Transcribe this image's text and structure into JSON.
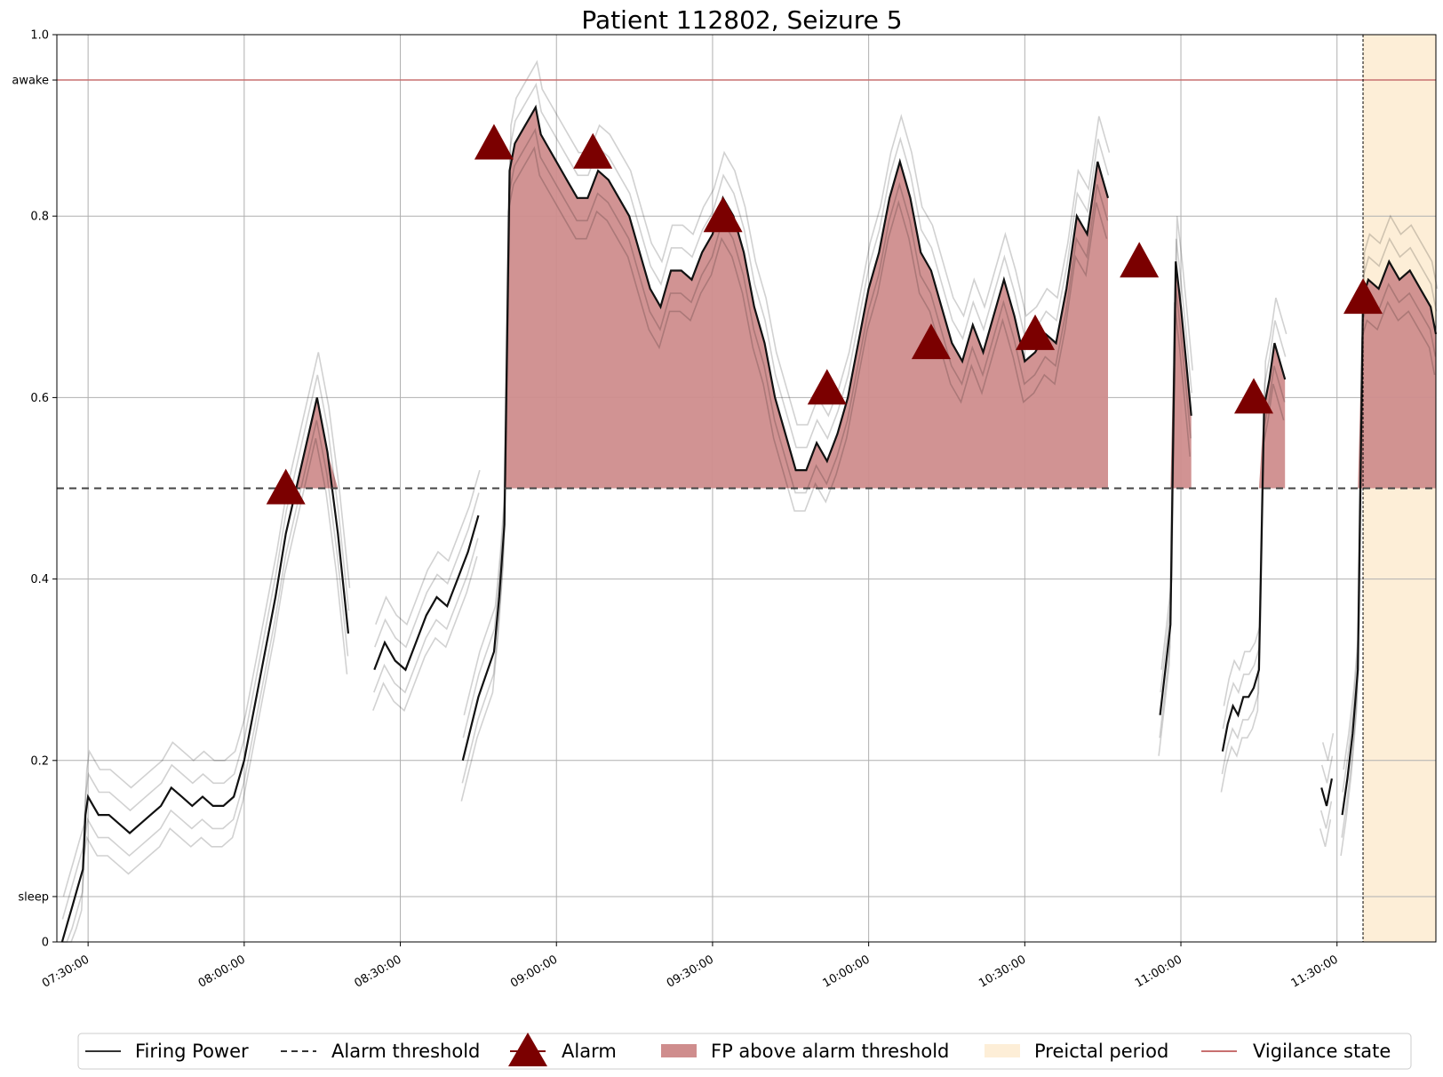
{
  "chart_data": {
    "type": "line",
    "title": "Patient 112802, Seizure 5",
    "xlabel": "",
    "ylabel": "",
    "xlim": [
      "07:24:00",
      "11:49:00"
    ],
    "ylim": [
      0,
      1
    ],
    "grid": true,
    "x_ticks": [
      "07:30:00",
      "08:00:00",
      "08:30:00",
      "09:00:00",
      "09:30:00",
      "10:00:00",
      "10:30:00",
      "11:00:00",
      "11:30:00"
    ],
    "y_ticks": [
      {
        "value": 0,
        "label": "0"
      },
      {
        "value": 0.05,
        "label": "sleep"
      },
      {
        "value": 0.2,
        "label": "0.2"
      },
      {
        "value": 0.4,
        "label": "0.4"
      },
      {
        "value": 0.6,
        "label": "0.6"
      },
      {
        "value": 0.8,
        "label": "0.8"
      },
      {
        "value": 0.95,
        "label": "awake"
      },
      {
        "value": 1.0,
        "label": "1.0"
      }
    ],
    "alarm_threshold": 0.5,
    "vigilance_state": 0.95,
    "preictal_period": [
      "11:35:00",
      "11:49:00"
    ],
    "seizure_onset_marker": "11:35:00",
    "legend": {
      "position": "bottom",
      "entries": [
        "Firing Power",
        "Alarm threshold",
        "Alarm",
        "FP above alarm threshold",
        "Preictal period",
        "Vigilance state"
      ]
    },
    "series": [
      {
        "name": "Firing Power",
        "segments": [
          {
            "x": [
              "07:25:00",
              "07:26:00",
              "07:27:00",
              "07:28:00",
              "07:29:00",
              "07:29:30",
              "07:30:00",
              "07:31:00",
              "07:32:00",
              "07:34:00",
              "07:36:00",
              "07:38:00",
              "07:40:00",
              "07:42:00",
              "07:44:00",
              "07:46:00",
              "07:48:00",
              "07:50:00",
              "07:52:00",
              "07:54:00",
              "07:56:00",
              "07:58:00",
              "08:00:00",
              "08:02:00",
              "08:04:00",
              "08:06:00",
              "08:08:00",
              "08:10:00",
              "08:12:00",
              "08:14:00",
              "08:16:00",
              "08:18:00",
              "08:20:00"
            ],
            "y": [
              0.0,
              0.02,
              0.04,
              0.06,
              0.08,
              0.14,
              0.16,
              0.15,
              0.14,
              0.14,
              0.13,
              0.12,
              0.13,
              0.14,
              0.15,
              0.17,
              0.16,
              0.15,
              0.16,
              0.15,
              0.15,
              0.16,
              0.2,
              0.26,
              0.32,
              0.38,
              0.45,
              0.5,
              0.55,
              0.6,
              0.54,
              0.45,
              0.34
            ]
          },
          {
            "x": [
              "08:25:00",
              "08:27:00",
              "08:29:00",
              "08:31:00",
              "08:33:00",
              "08:35:00",
              "08:37:00",
              "08:39:00",
              "08:41:00",
              "08:43:00",
              "08:45:00"
            ],
            "y": [
              0.3,
              0.33,
              0.31,
              0.3,
              0.33,
              0.36,
              0.38,
              0.37,
              0.4,
              0.43,
              0.47
            ]
          },
          {
            "x": [
              "08:42:00",
              "08:45:00",
              "08:48:00",
              "08:49:00",
              "08:50:00",
              "08:51:00",
              "08:52:00",
              "08:53:00",
              "08:54:00",
              "08:55:00",
              "08:56:00",
              "08:57:00",
              "08:58:00",
              "09:00:00",
              "09:02:00",
              "09:04:00",
              "09:06:00",
              "09:08:00",
              "09:10:00",
              "09:12:00",
              "09:14:00",
              "09:16:00",
              "09:18:00",
              "09:20:00",
              "09:22:00",
              "09:24:00",
              "09:26:00",
              "09:28:00",
              "09:30:00",
              "09:32:00",
              "09:34:00",
              "09:36:00",
              "09:38:00",
              "09:40:00",
              "09:42:00",
              "09:44:00",
              "09:46:00",
              "09:48:00",
              "09:50:00",
              "09:52:00",
              "09:54:00",
              "09:56:00",
              "09:58:00",
              "10:00:00",
              "10:02:00",
              "10:04:00",
              "10:06:00",
              "10:08:00",
              "10:10:00",
              "10:12:00",
              "10:14:00",
              "10:16:00",
              "10:18:00",
              "10:20:00",
              "10:22:00",
              "10:24:00",
              "10:26:00",
              "10:28:00",
              "10:30:00",
              "10:32:00",
              "10:34:00",
              "10:36:00",
              "10:38:00",
              "10:40:00",
              "10:42:00",
              "10:44:00",
              "10:46:00"
            ],
            "y": [
              0.2,
              0.27,
              0.32,
              0.38,
              0.46,
              0.85,
              0.88,
              0.89,
              0.9,
              0.91,
              0.92,
              0.89,
              0.88,
              0.86,
              0.84,
              0.82,
              0.82,
              0.85,
              0.84,
              0.82,
              0.8,
              0.76,
              0.72,
              0.7,
              0.74,
              0.74,
              0.73,
              0.76,
              0.78,
              0.82,
              0.8,
              0.76,
              0.7,
              0.66,
              0.6,
              0.56,
              0.52,
              0.52,
              0.55,
              0.53,
              0.56,
              0.6,
              0.66,
              0.72,
              0.76,
              0.82,
              0.86,
              0.82,
              0.76,
              0.74,
              0.7,
              0.66,
              0.64,
              0.68,
              0.65,
              0.69,
              0.73,
              0.69,
              0.64,
              0.65,
              0.67,
              0.66,
              0.72,
              0.8,
              0.78,
              0.86,
              0.82
            ]
          },
          {
            "x": [
              "10:56:00",
              "10:57:00",
              "10:58:00",
              "10:59:00",
              "11:00:00",
              "11:01:00",
              "11:02:00"
            ],
            "y": [
              0.25,
              0.3,
              0.35,
              0.75,
              0.7,
              0.64,
              0.58
            ]
          },
          {
            "x": [
              "11:08:00",
              "11:09:00",
              "11:10:00",
              "11:11:00",
              "11:12:00",
              "11:13:00",
              "11:14:00",
              "11:15:00",
              "11:16:00",
              "11:17:00",
              "11:18:00",
              "11:19:00",
              "11:20:00"
            ],
            "y": [
              0.21,
              0.24,
              0.26,
              0.25,
              0.27,
              0.27,
              0.28,
              0.3,
              0.59,
              0.62,
              0.66,
              0.64,
              0.62
            ]
          },
          {
            "x": [
              "11:27:00",
              "11:28:00",
              "11:29:00"
            ],
            "y": [
              0.17,
              0.15,
              0.18
            ]
          },
          {
            "x": [
              "11:31:00",
              "11:32:00",
              "11:33:00",
              "11:34:00",
              "11:35:00",
              "11:36:00",
              "11:38:00",
              "11:40:00",
              "11:42:00",
              "11:44:00",
              "11:46:00",
              "11:48:00",
              "11:49:00"
            ],
            "y": [
              0.14,
              0.18,
              0.23,
              0.3,
              0.71,
              0.73,
              0.72,
              0.75,
              0.73,
              0.74,
              0.72,
              0.7,
              0.67
            ]
          }
        ]
      },
      {
        "name": "Alarm",
        "points": [
          {
            "x": "08:08:00",
            "y": 0.5
          },
          {
            "x": "08:48:00",
            "y": 0.88
          },
          {
            "x": "09:07:00",
            "y": 0.87
          },
          {
            "x": "09:32:00",
            "y": 0.8
          },
          {
            "x": "09:52:00",
            "y": 0.61
          },
          {
            "x": "10:12:00",
            "y": 0.66
          },
          {
            "x": "10:32:00",
            "y": 0.67
          },
          {
            "x": "10:52:00",
            "y": 0.75
          },
          {
            "x": "11:14:00",
            "y": 0.6
          },
          {
            "x": "11:35:00",
            "y": 0.71
          }
        ]
      }
    ]
  }
}
